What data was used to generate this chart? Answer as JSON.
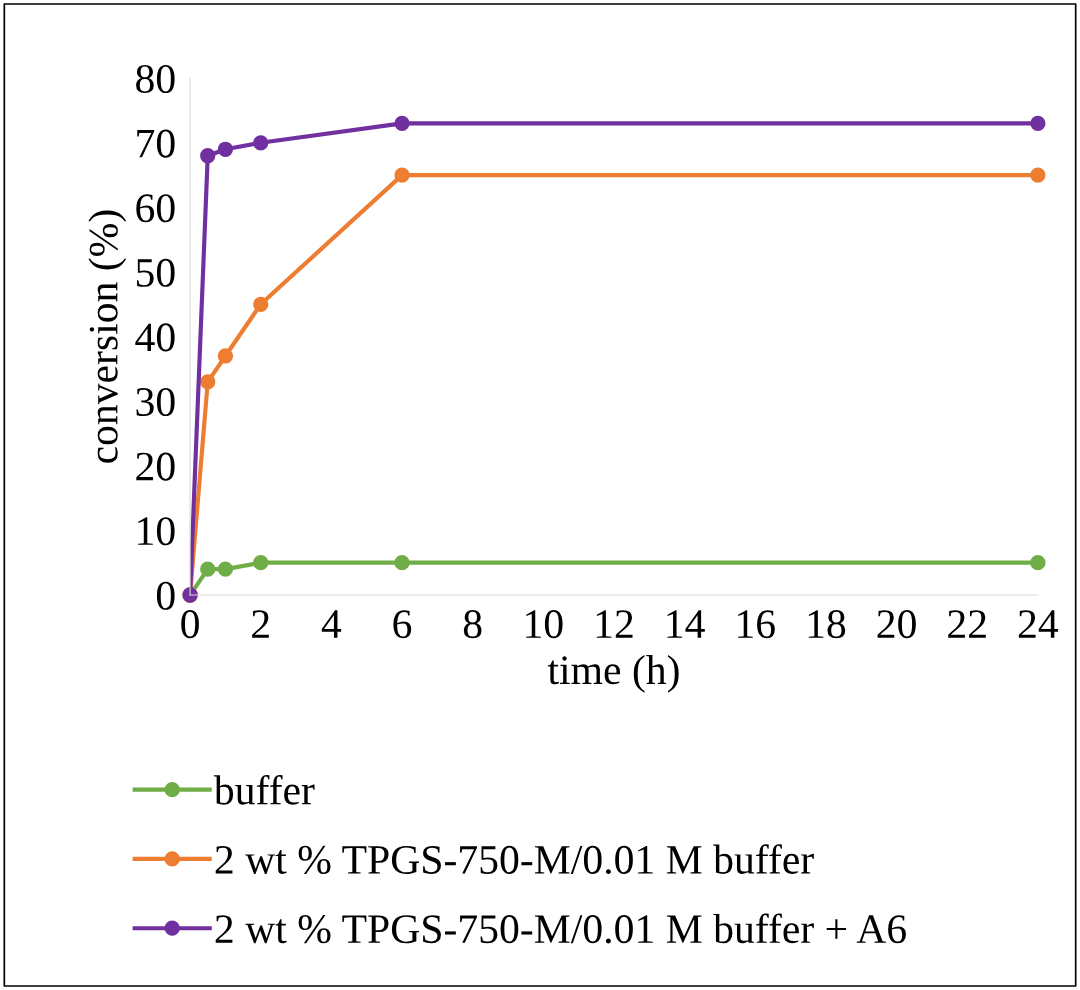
{
  "chart_data": {
    "type": "line",
    "xlabel": "time (h)",
    "ylabel": "conversion (%)",
    "x": [
      0,
      0.5,
      1,
      2,
      6,
      24
    ],
    "series": [
      {
        "name": "buffer",
        "color": "#70ad47",
        "values": [
          0,
          4,
          4,
          5,
          5,
          5
        ]
      },
      {
        "name": "2 wt % TPGS-750-M/0.01 M buffer",
        "color": "#ed7d31",
        "values": [
          0,
          33,
          37,
          45,
          65,
          65
        ]
      },
      {
        "name": "2 wt % TPGS-750-M/0.01 M buffer + A6",
        "color": "#7030a0",
        "values": [
          0,
          68,
          69,
          70,
          73,
          73
        ]
      }
    ],
    "xlim": [
      0,
      24
    ],
    "xticks": [
      0,
      2,
      4,
      6,
      8,
      10,
      12,
      14,
      16,
      18,
      20,
      22,
      24
    ],
    "ylim": [
      0,
      80
    ],
    "yticks": [
      0,
      10,
      20,
      30,
      40,
      50,
      60,
      70,
      80
    ],
    "grid": false,
    "legend": "bottom",
    "marker": "circle",
    "line_style": "solid"
  }
}
